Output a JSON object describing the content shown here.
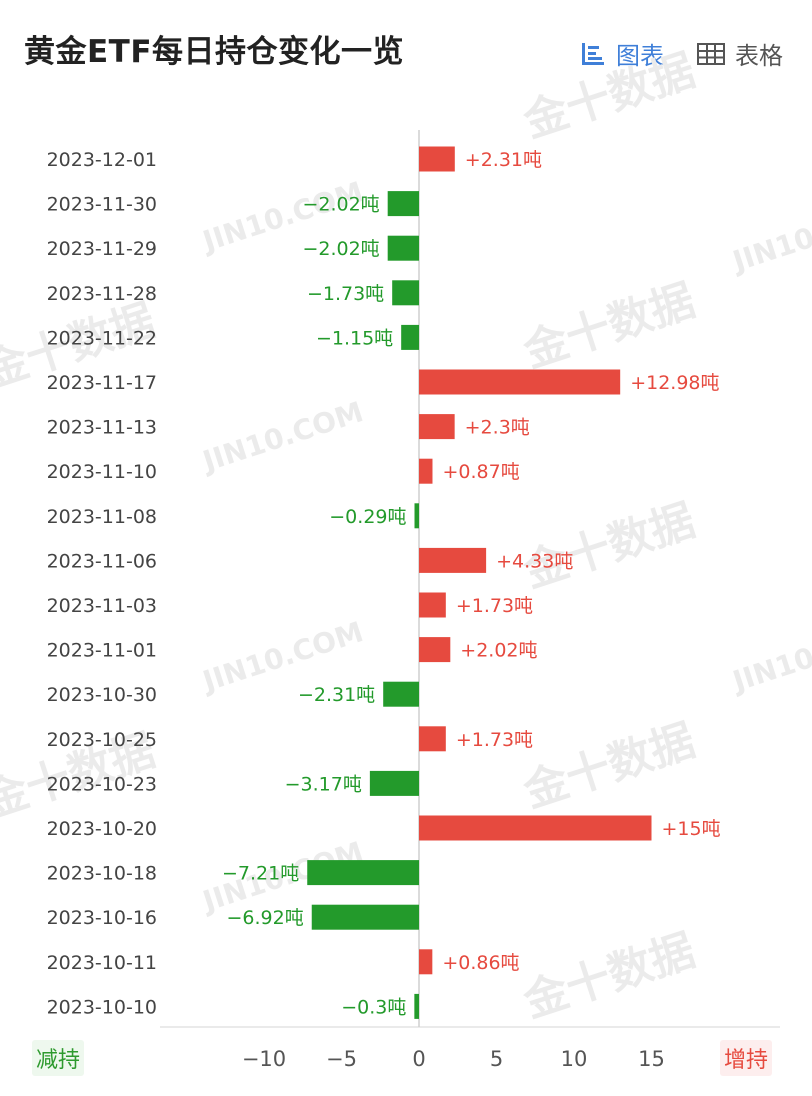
{
  "header": {
    "title": "黄金ETF每日持仓变化一览",
    "chart_tab": {
      "label": "图表",
      "icon": "bar-chart-icon"
    },
    "table_tab": {
      "label": "表格",
      "icon": "table-grid-icon"
    }
  },
  "watermark": {
    "text_cn": "金十数据",
    "text_en": "JIN10.COM"
  },
  "legend": {
    "negative_label": "减持",
    "positive_label": "增持"
  },
  "colors": {
    "increase": "#e64a3f",
    "decrease": "#239a2b",
    "accent": "#3f7fd8"
  },
  "chart_data": {
    "type": "bar",
    "orientation": "horizontal",
    "title": "黄金ETF每日持仓变化一览",
    "unit": "吨",
    "categories": [
      "2023-12-01",
      "2023-11-30",
      "2023-11-29",
      "2023-11-28",
      "2023-11-22",
      "2023-11-17",
      "2023-11-13",
      "2023-11-10",
      "2023-11-08",
      "2023-11-06",
      "2023-11-03",
      "2023-11-01",
      "2023-10-30",
      "2023-10-25",
      "2023-10-23",
      "2023-10-20",
      "2023-10-18",
      "2023-10-16",
      "2023-10-11",
      "2023-10-10"
    ],
    "values": [
      2.31,
      -2.02,
      -2.02,
      -1.73,
      -1.15,
      12.98,
      2.3,
      0.87,
      -0.29,
      4.33,
      1.73,
      2.02,
      -2.31,
      1.73,
      -3.17,
      15,
      -7.21,
      -6.92,
      0.86,
      -0.3
    ],
    "value_labels": [
      "+2.31吨",
      "−2.02吨",
      "−2.02吨",
      "−1.73吨",
      "−1.15吨",
      "+12.98吨",
      "+2.3吨",
      "+0.87吨",
      "−0.29吨",
      "+4.33吨",
      "+1.73吨",
      "+2.02吨",
      "−2.31吨",
      "+1.73吨",
      "−3.17吨",
      "+15吨",
      "−7.21吨",
      "−6.92吨",
      "+0.86吨",
      "−0.3吨"
    ],
    "xlim": [
      -10,
      15
    ],
    "xticks": [
      -10,
      -5,
      0,
      5,
      10,
      15
    ],
    "xtick_labels": [
      "−10",
      "−5",
      "0",
      "5",
      "10",
      "15"
    ],
    "grid": false
  }
}
